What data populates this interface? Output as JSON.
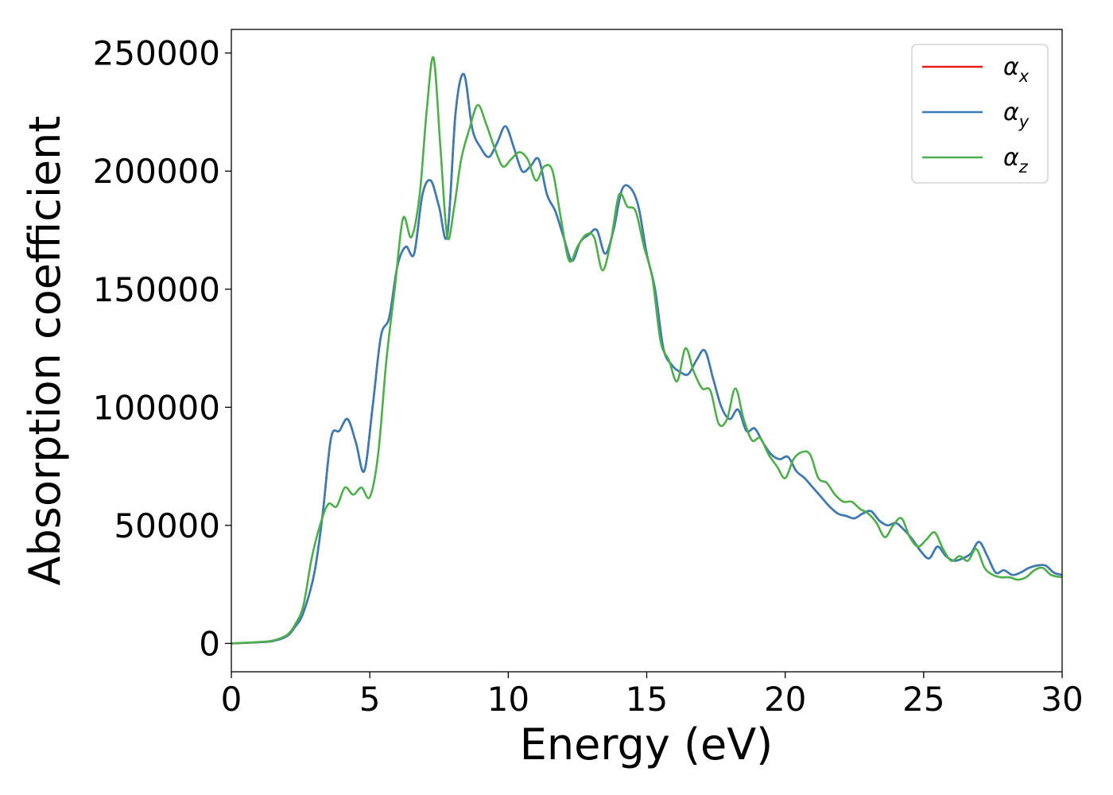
{
  "chart_data": {
    "type": "line",
    "title": "",
    "xlabel": "Energy (eV)",
    "ylabel": "Absorption coefficient",
    "xlim": [
      0,
      30
    ],
    "ylim": [
      -12000,
      260000
    ],
    "xticks": [
      0,
      5,
      10,
      15,
      20,
      25,
      30
    ],
    "xtick_labels": [
      "0",
      "5",
      "10",
      "15",
      "20",
      "25",
      "30"
    ],
    "yticks": [
      0,
      50000,
      100000,
      150000,
      200000,
      250000
    ],
    "ytick_labels": [
      "0",
      "50000",
      "100000",
      "150000",
      "200000",
      "250000"
    ],
    "grid": false,
    "legend": "top-right",
    "series": [
      {
        "name": "α",
        "subscript": "x",
        "color": "#e41a1c",
        "x": [
          0,
          1,
          1.5,
          2,
          2.3,
          2.6,
          3,
          3.3,
          3.6,
          3.9,
          4.2,
          4.5,
          4.8,
          5.1,
          5.4,
          5.7,
          6,
          6.3,
          6.6,
          6.9,
          7.2,
          7.5,
          7.8,
          8.1,
          8.4,
          8.7,
          9,
          9.3,
          9.6,
          9.9,
          10.2,
          10.5,
          10.8,
          11.1,
          11.4,
          11.7,
          12,
          12.3,
          12.6,
          12.9,
          13.2,
          13.5,
          13.8,
          14.1,
          14.4,
          14.7,
          15,
          15.3,
          15.6,
          15.9,
          16.2,
          16.5,
          16.8,
          17.1,
          17.4,
          17.7,
          18,
          18.3,
          18.6,
          18.9,
          19.2,
          19.5,
          19.8,
          20.1,
          20.4,
          20.7,
          21,
          21.3,
          21.6,
          21.9,
          22.2,
          22.5,
          22.8,
          23.1,
          23.4,
          23.7,
          24,
          24.3,
          24.6,
          24.9,
          25.2,
          25.5,
          25.8,
          26.1,
          26.4,
          26.7,
          27,
          27.3,
          27.6,
          27.9,
          28.2,
          28.5,
          28.8,
          29.1,
          29.4,
          29.7,
          30
        ],
        "y": [
          0,
          500,
          1000,
          3000,
          7000,
          13000,
          30000,
          55000,
          87000,
          90000,
          95000,
          85000,
          73000,
          100000,
          130000,
          138000,
          160000,
          168000,
          165000,
          190000,
          196000,
          185000,
          173000,
          225000,
          241000,
          218000,
          210000,
          206000,
          212000,
          219000,
          210000,
          200000,
          202000,
          205000,
          190000,
          183000,
          172000,
          162000,
          170000,
          173000,
          175000,
          165000,
          175000,
          192000,
          193000,
          185000,
          165000,
          150000,
          125000,
          118000,
          115000,
          114000,
          120000,
          124000,
          112000,
          100000,
          95000,
          99000,
          90000,
          91000,
          85000,
          80000,
          78000,
          79000,
          73000,
          70000,
          66000,
          62000,
          58000,
          55000,
          54000,
          53000,
          55000,
          56000,
          52000,
          50000,
          51000,
          48000,
          44000,
          39000,
          36000,
          41000,
          37000,
          35000,
          36000,
          38000,
          43000,
          37000,
          30000,
          31000,
          29000,
          30000,
          32000,
          33000,
          33000,
          30000,
          29000
        ]
      },
      {
        "name": "α",
        "subscript": "y",
        "color": "#377eb8",
        "x": [
          0,
          1,
          1.5,
          2,
          2.3,
          2.6,
          3,
          3.3,
          3.6,
          3.9,
          4.2,
          4.5,
          4.8,
          5.1,
          5.4,
          5.7,
          6,
          6.3,
          6.6,
          6.9,
          7.2,
          7.5,
          7.8,
          8.1,
          8.4,
          8.7,
          9,
          9.3,
          9.6,
          9.9,
          10.2,
          10.5,
          10.8,
          11.1,
          11.4,
          11.7,
          12,
          12.3,
          12.6,
          12.9,
          13.2,
          13.5,
          13.8,
          14.1,
          14.4,
          14.7,
          15,
          15.3,
          15.6,
          15.9,
          16.2,
          16.5,
          16.8,
          17.1,
          17.4,
          17.7,
          18,
          18.3,
          18.6,
          18.9,
          19.2,
          19.5,
          19.8,
          20.1,
          20.4,
          20.7,
          21,
          21.3,
          21.6,
          21.9,
          22.2,
          22.5,
          22.8,
          23.1,
          23.4,
          23.7,
          24,
          24.3,
          24.6,
          24.9,
          25.2,
          25.5,
          25.8,
          26.1,
          26.4,
          26.7,
          27,
          27.3,
          27.6,
          27.9,
          28.2,
          28.5,
          28.8,
          29.1,
          29.4,
          29.7,
          30
        ],
        "y": [
          0,
          500,
          1000,
          3000,
          7000,
          13000,
          30000,
          55000,
          87000,
          90000,
          95000,
          85000,
          73000,
          100000,
          130000,
          138000,
          160000,
          168000,
          165000,
          190000,
          196000,
          185000,
          173000,
          225000,
          241000,
          218000,
          210000,
          206000,
          212000,
          219000,
          210000,
          200000,
          202000,
          205000,
          190000,
          183000,
          172000,
          162000,
          170000,
          173000,
          175000,
          165000,
          175000,
          192000,
          193000,
          185000,
          165000,
          150000,
          125000,
          118000,
          115000,
          114000,
          120000,
          124000,
          112000,
          100000,
          95000,
          99000,
          90000,
          91000,
          85000,
          80000,
          78000,
          79000,
          73000,
          70000,
          66000,
          62000,
          58000,
          55000,
          54000,
          53000,
          55000,
          56000,
          52000,
          50000,
          51000,
          48000,
          44000,
          39000,
          36000,
          41000,
          37000,
          35000,
          36000,
          38000,
          43000,
          37000,
          30000,
          31000,
          29000,
          30000,
          32000,
          33000,
          33000,
          30000,
          29000
        ]
      },
      {
        "name": "α",
        "subscript": "z",
        "color": "#4daf4a",
        "x": [
          0,
          1,
          1.5,
          2,
          2.3,
          2.6,
          2.9,
          3.2,
          3.5,
          3.8,
          4.1,
          4.4,
          4.7,
          5,
          5.3,
          5.6,
          5.9,
          6.2,
          6.5,
          6.8,
          7.05,
          7.3,
          7.55,
          7.8,
          8.05,
          8.3,
          8.6,
          8.9,
          9.2,
          9.5,
          9.8,
          10.1,
          10.4,
          10.7,
          11,
          11.3,
          11.6,
          11.9,
          12.2,
          12.5,
          12.8,
          13.1,
          13.4,
          13.7,
          14,
          14.3,
          14.6,
          14.9,
          15.2,
          15.5,
          15.8,
          16.1,
          16.4,
          16.7,
          17,
          17.3,
          17.6,
          17.9,
          18.2,
          18.5,
          18.8,
          19.1,
          19.4,
          19.7,
          20,
          20.3,
          20.6,
          20.9,
          21.2,
          21.5,
          21.8,
          22.1,
          22.4,
          22.7,
          23,
          23.3,
          23.6,
          23.9,
          24.2,
          24.5,
          24.8,
          25.1,
          25.4,
          25.7,
          26,
          26.3,
          26.6,
          26.9,
          27.2,
          27.5,
          27.8,
          28.1,
          28.4,
          28.7,
          29,
          29.3,
          29.6,
          30
        ],
        "y": [
          0,
          600,
          1200,
          3500,
          8000,
          16000,
          36000,
          50000,
          59000,
          58000,
          66000,
          63000,
          66000,
          62000,
          80000,
          120000,
          150000,
          180000,
          172000,
          190000,
          225000,
          248000,
          210000,
          172000,
          185000,
          205000,
          218000,
          228000,
          220000,
          210000,
          202000,
          205000,
          208000,
          205000,
          196000,
          202000,
          200000,
          180000,
          162000,
          168000,
          173000,
          172000,
          158000,
          170000,
          190000,
          185000,
          183000,
          168000,
          155000,
          128000,
          120000,
          111000,
          125000,
          115000,
          108000,
          107000,
          93000,
          95000,
          108000,
          95000,
          86000,
          87000,
          80000,
          75000,
          70000,
          78000,
          81000,
          80000,
          70000,
          68000,
          63000,
          60000,
          60000,
          57000,
          55000,
          51000,
          45000,
          50000,
          53000,
          45000,
          41000,
          44000,
          47000,
          40000,
          35000,
          37000,
          35000,
          40000,
          32000,
          29000,
          28000,
          28000,
          27000,
          28000,
          31000,
          32000,
          29000,
          28000
        ]
      }
    ]
  }
}
